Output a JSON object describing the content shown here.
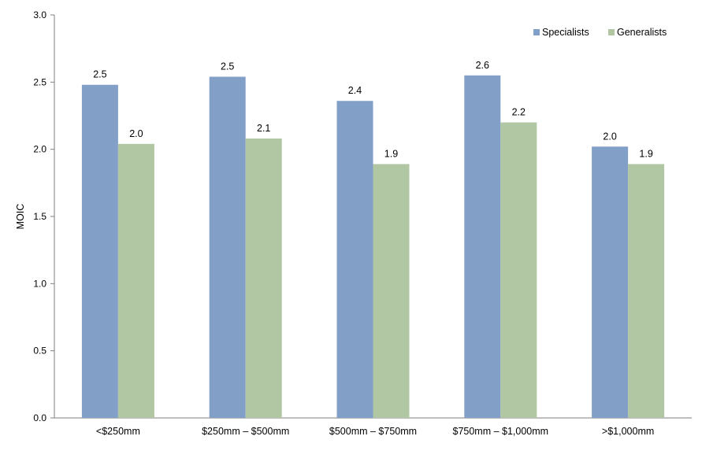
{
  "chart_data": {
    "type": "bar",
    "title": "",
    "xlabel": "",
    "ylabel": "MOIC",
    "ylim": [
      0,
      3.0
    ],
    "yticks": [
      "0.0",
      "0.5",
      "1.0",
      "1.5",
      "2.0",
      "2.5",
      "3.0"
    ],
    "grid": false,
    "legend_position": "top-right",
    "categories": [
      "<$250mm",
      "$250mm – $500mm",
      "$500mm – $750mm",
      "$750mm – $1,000mm",
      ">$1,000mm"
    ],
    "series": [
      {
        "name": "Specialists",
        "color": "#829fc7",
        "values": [
          2.48,
          2.54,
          2.36,
          2.55,
          2.02
        ],
        "labels": [
          "2.5",
          "2.5",
          "2.4",
          "2.6",
          "2.0"
        ]
      },
      {
        "name": "Generalists",
        "color": "#b1c7a4",
        "values": [
          2.04,
          2.08,
          1.89,
          2.2,
          1.89
        ],
        "labels": [
          "2.0",
          "2.1",
          "1.9",
          "2.2",
          "1.9"
        ]
      }
    ]
  }
}
